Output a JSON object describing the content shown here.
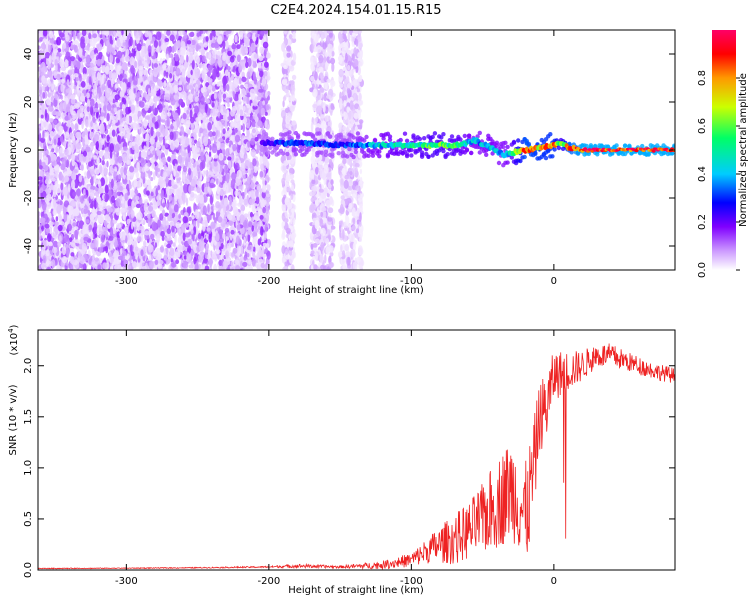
{
  "title": "C2E4.2024.154.01.15.R15",
  "chart_data": [
    {
      "type": "heatmap",
      "xlabel": "Height of straight line (km)",
      "ylabel": "Frequency (Hz)",
      "xlim": [
        -362,
        85
      ],
      "ylim": [
        -50,
        50
      ],
      "x_ticks": [
        -300,
        -200,
        -100,
        0
      ],
      "y_ticks": [
        -40,
        -20,
        0,
        20,
        40
      ],
      "noise_extents_km": [
        [
          -362,
          -200
        ],
        [
          -190,
          -182
        ],
        [
          -170,
          -155
        ],
        [
          -150,
          -135
        ]
      ],
      "signal_ridge": {
        "x": [
          -205,
          -180,
          -150,
          -120,
          -100,
          -80,
          -65,
          -55,
          -45,
          -35,
          -28,
          -20,
          -10,
          0,
          5,
          10,
          20,
          40,
          60,
          85
        ],
        "frequency_hz": [
          3,
          3,
          2,
          2,
          2,
          2,
          2,
          4,
          1,
          -2,
          -1,
          0,
          1,
          2,
          3,
          1,
          0,
          0,
          0,
          0
        ],
        "amplitude": [
          0.3,
          0.4,
          0.35,
          0.5,
          0.55,
          0.6,
          0.55,
          0.45,
          0.5,
          0.45,
          0.6,
          0.85,
          0.8,
          0.8,
          0.6,
          0.85,
          0.95,
          0.95,
          0.95,
          0.95
        ]
      },
      "colorbar": {
        "label": "Normalized spectral amplitude",
        "range": [
          0,
          1
        ],
        "ticks": [
          0.0,
          0.2,
          0.4,
          0.6,
          0.8
        ],
        "tick_labels": [
          "0.0",
          "0.2",
          "0.4",
          "0.6",
          "0.8"
        ],
        "colormap": [
          "#ffffff",
          "#cc99ff",
          "#8000ff",
          "#0000ff",
          "#00ccff",
          "#00ff66",
          "#ccff00",
          "#ff9900",
          "#ff0000",
          "#ff0066"
        ]
      }
    },
    {
      "type": "line",
      "xlabel": "Height of straight line (km)",
      "ylabel": "SNR (10 * v/v)",
      "y_multiplier_label": "(x10",
      "y_multiplier_exp": "4",
      "xlim": [
        -362,
        85
      ],
      "ylim": [
        0,
        23500
      ],
      "x_ticks": [
        -300,
        -200,
        -100,
        0
      ],
      "y_ticks": [
        0,
        5000,
        10000,
        15000,
        20000
      ],
      "y_tick_labels": [
        "0.0",
        "0.5",
        "1.0",
        "1.5",
        "2.0"
      ],
      "series": [
        {
          "color": "#ee2222",
          "x": [
            -362,
            -300,
            -250,
            -200,
            -180,
            -150,
            -120,
            -100,
            -90,
            -80,
            -70,
            -60,
            -50,
            -40,
            -30,
            -25,
            -20,
            -15,
            -10,
            -5,
            0,
            10,
            20,
            30,
            40,
            50,
            60,
            70,
            85
          ],
          "values": [
            150,
            180,
            220,
            300,
            400,
            300,
            500,
            1000,
            1800,
            2500,
            3000,
            3800,
            5000,
            6500,
            8000,
            7000,
            5000,
            9000,
            15000,
            16000,
            19000,
            19500,
            20000,
            21000,
            21000,
            20500,
            20000,
            19500,
            19000
          ],
          "noise": [
            40,
            40,
            50,
            80,
            200,
            120,
            400,
            700,
            1200,
            1800,
            2500,
            2800,
            3500,
            4500,
            5000,
            5000,
            5500,
            5000,
            3500,
            3500,
            2500,
            2000,
            1500,
            1200,
            1200,
            1000,
            900,
            800,
            800
          ]
        }
      ]
    }
  ]
}
